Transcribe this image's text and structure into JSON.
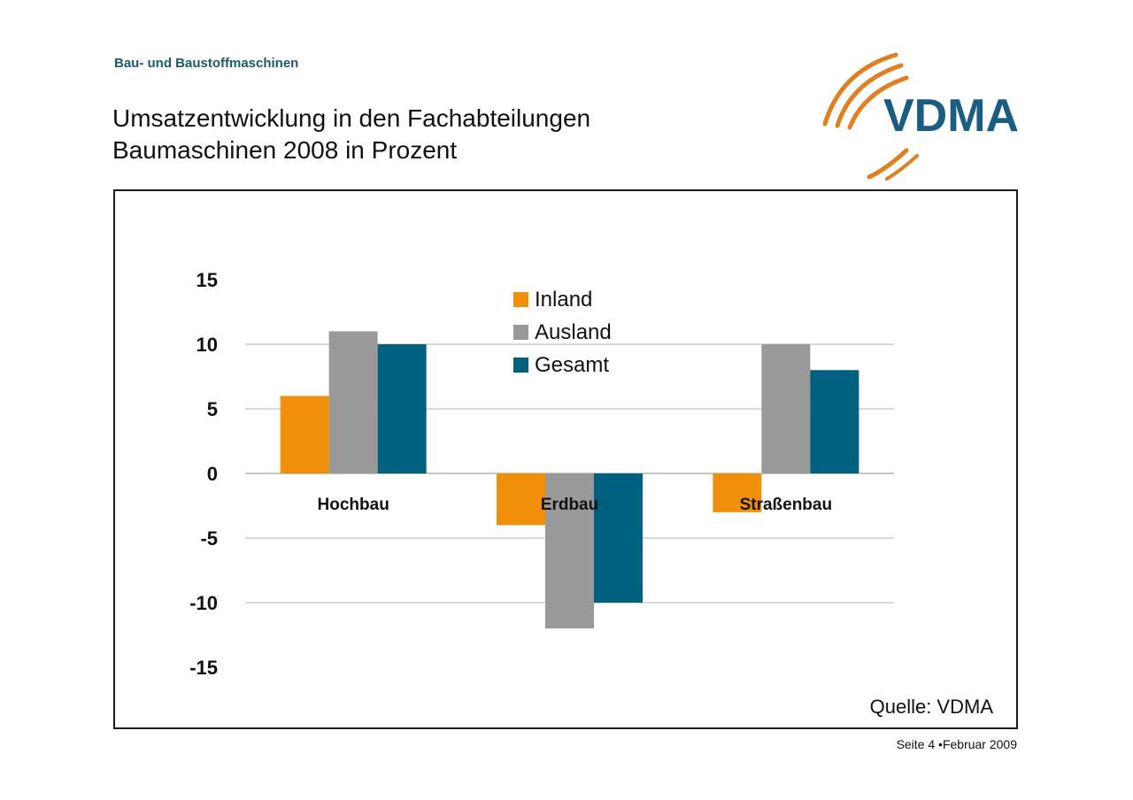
{
  "header": {
    "subtitle": "Bau- und Baustoffmaschinen",
    "title_line1": "Umsatzentwicklung in den Fachabteilungen",
    "title_line2": "Baumaschinen 2008 in Prozent",
    "logo_text": "VDMA"
  },
  "colors": {
    "brand_teal": "#1d5a6b",
    "logo_orange": "#e07f1f",
    "logo_blue": "#1b5c82"
  },
  "chart_data": {
    "type": "bar",
    "categories": [
      "Hochbau",
      "Erdbau",
      "Straßenbau"
    ],
    "series": [
      {
        "name": "Inland",
        "values": [
          6,
          -4,
          -3
        ],
        "color": "#f0900a"
      },
      {
        "name": "Ausland",
        "values": [
          11,
          -12,
          10
        ],
        "color": "#999999"
      },
      {
        "name": "Gesamt",
        "values": [
          10,
          -10,
          8
        ],
        "color": "#006080"
      }
    ],
    "yticks": [
      "15",
      "10",
      "5",
      "0",
      "-5",
      "-10",
      "-15"
    ],
    "ylim": [
      -15,
      15
    ],
    "grid": true,
    "legend_position": "top-center"
  },
  "source_label": "Quelle: VDMA",
  "footer": "Seite 4 •Februar 2009"
}
